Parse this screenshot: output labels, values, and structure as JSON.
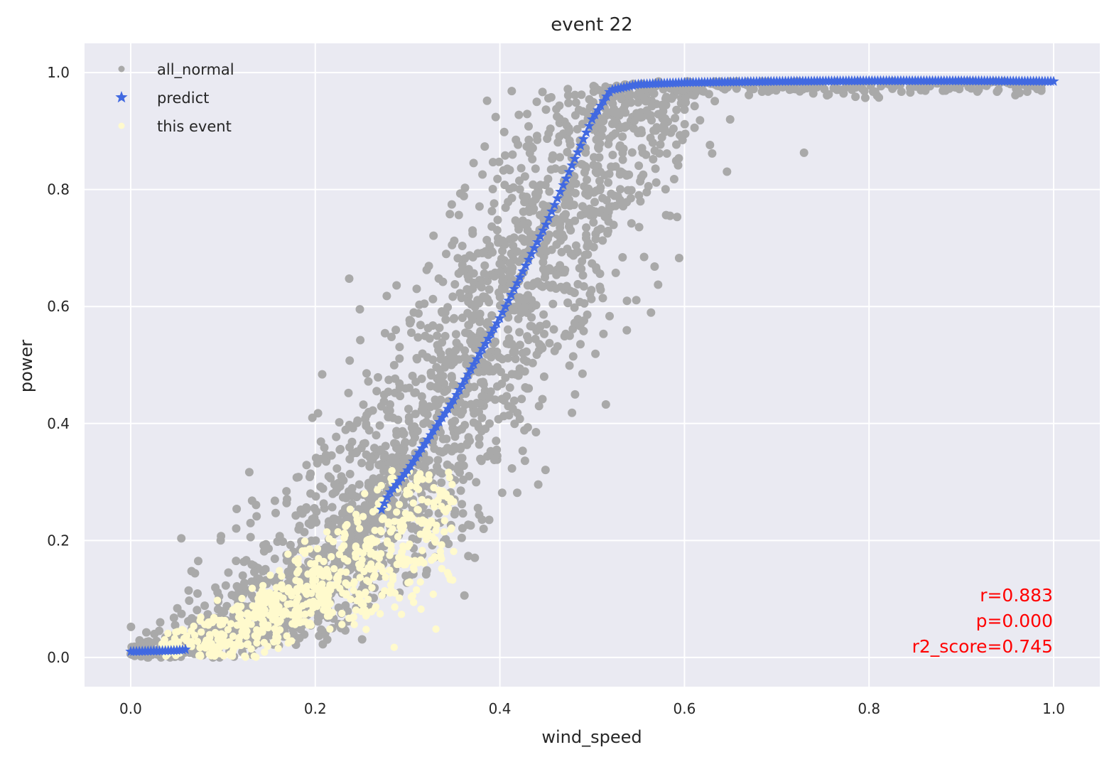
{
  "chart_data": {
    "type": "scatter",
    "title": "event 22",
    "xlabel": "wind_speed",
    "ylabel": "power",
    "xlim": [
      -0.05,
      1.05
    ],
    "ylim": [
      -0.05,
      1.05
    ],
    "xticks": [
      0.0,
      0.2,
      0.4,
      0.6,
      0.8,
      1.0
    ],
    "yticks": [
      0.0,
      0.2,
      0.4,
      0.6,
      0.8,
      1.0
    ],
    "xtick_labels": [
      "0.0",
      "0.2",
      "0.4",
      "0.6",
      "0.8",
      "1.0"
    ],
    "ytick_labels": [
      "0.0",
      "0.2",
      "0.4",
      "0.6",
      "0.8",
      "1.0"
    ],
    "grid": true,
    "legend_position": "top-left",
    "background_color": "#EAEAF2",
    "series": [
      {
        "name": "all_normal",
        "marker": "circle",
        "color": "#A9A9A9",
        "center_curve": {
          "x": [
            0.0,
            0.05,
            0.1,
            0.15,
            0.2,
            0.25,
            0.3,
            0.35,
            0.4,
            0.45,
            0.5,
            0.55,
            0.6,
            0.7,
            0.8,
            0.9,
            0.99
          ],
          "y": [
            0.01,
            0.015,
            0.03,
            0.07,
            0.13,
            0.22,
            0.33,
            0.46,
            0.59,
            0.74,
            0.88,
            0.97,
            0.98,
            0.985,
            0.985,
            0.985,
            0.985
          ]
        },
        "band_halfwidth_x": 0.1,
        "extent": {
          "x": [
            0.0,
            0.99
          ],
          "y": [
            0.0,
            1.0
          ]
        }
      },
      {
        "name": "predict",
        "marker": "star",
        "color": "#4169E1",
        "x": [
          0.0,
          0.05,
          0.1,
          0.15,
          0.2,
          0.25,
          0.28,
          0.3,
          0.35,
          0.4,
          0.45,
          0.5,
          0.52,
          0.55,
          0.6,
          0.7,
          0.8,
          0.9,
          1.0
        ],
        "y": [
          0.01,
          0.012,
          0.02,
          0.045,
          0.09,
          0.18,
          0.28,
          0.32,
          0.44,
          0.58,
          0.74,
          0.92,
          0.97,
          0.98,
          0.983,
          0.985,
          0.986,
          0.986,
          0.985
        ]
      },
      {
        "name": "this event",
        "marker": "circle",
        "color": "#FFFACD",
        "center_curve": {
          "x": [
            0.04,
            0.1,
            0.15,
            0.2,
            0.25,
            0.3,
            0.34
          ],
          "y": [
            0.01,
            0.03,
            0.07,
            0.11,
            0.16,
            0.22,
            0.27
          ]
        },
        "extent": {
          "x": [
            0.03,
            0.35
          ],
          "y": [
            0.0,
            0.32
          ]
        }
      }
    ],
    "annotations": [
      {
        "text": "r=0.883",
        "color": "#FF0000"
      },
      {
        "text": "p=0.000",
        "color": "#FF0000"
      },
      {
        "text": "r2_score=0.745",
        "color": "#FF0000"
      }
    ]
  }
}
